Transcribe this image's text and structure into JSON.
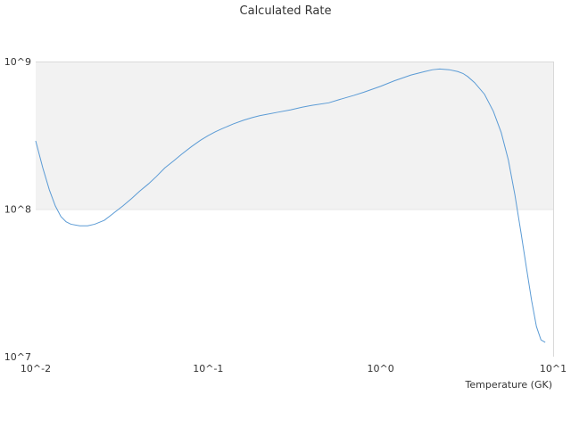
{
  "chart_data": {
    "type": "line",
    "title": "Calculated Rate",
    "xlabel": "Temperature (GK)",
    "ylabel": "",
    "xscale": "log",
    "yscale": "log",
    "xlim": [
      0.01,
      10
    ],
    "ylim": [
      10000000,
      1000000000
    ],
    "x_ticks": [
      "10^-2",
      "10^-1",
      "10^0",
      "10^1"
    ],
    "y_ticks": [
      "10^7",
      "10^8",
      "10^9"
    ],
    "grid": false,
    "legend": "none",
    "shaded_band": {
      "ymin": 100000000,
      "ymax": 1000000000,
      "color": "#f2f2f2"
    },
    "series": [
      {
        "color": "#5b9bd5",
        "x": [
          0.01,
          0.011,
          0.012,
          0.013,
          0.014,
          0.015,
          0.016,
          0.018,
          0.02,
          0.022,
          0.025,
          0.028,
          0.032,
          0.036,
          0.04,
          0.045,
          0.05,
          0.056,
          0.063,
          0.07,
          0.08,
          0.09,
          0.1,
          0.11,
          0.12,
          0.14,
          0.16,
          0.18,
          0.2,
          0.25,
          0.3,
          0.35,
          0.4,
          0.5,
          0.6,
          0.7,
          0.8,
          1.0,
          1.2,
          1.5,
          1.8,
          2.0,
          2.2,
          2.5,
          2.8,
          3.0,
          3.2,
          3.5,
          4.0,
          4.5,
          5.0,
          5.5,
          6.0,
          6.5,
          7.0,
          7.5,
          8.0,
          8.5,
          9.0
        ],
        "y": [
          290000000,
          190000000,
          135000000,
          105000000,
          89000000,
          82000000,
          79000000,
          77000000,
          77000000,
          79000000,
          84000000,
          93000000,
          105000000,
          118000000,
          132000000,
          148000000,
          166000000,
          190000000,
          212000000,
          235000000,
          265000000,
          292000000,
          315000000,
          334000000,
          350000000,
          378000000,
          400000000,
          417000000,
          430000000,
          452000000,
          470000000,
          490000000,
          505000000,
          525000000,
          560000000,
          590000000,
          620000000,
          680000000,
          740000000,
          810000000,
          855000000,
          880000000,
          890000000,
          880000000,
          855000000,
          830000000,
          790000000,
          720000000,
          600000000,
          460000000,
          330000000,
          215000000,
          125000000,
          70000000,
          40000000,
          24000000,
          16000000,
          13000000,
          12500000
        ]
      }
    ]
  }
}
